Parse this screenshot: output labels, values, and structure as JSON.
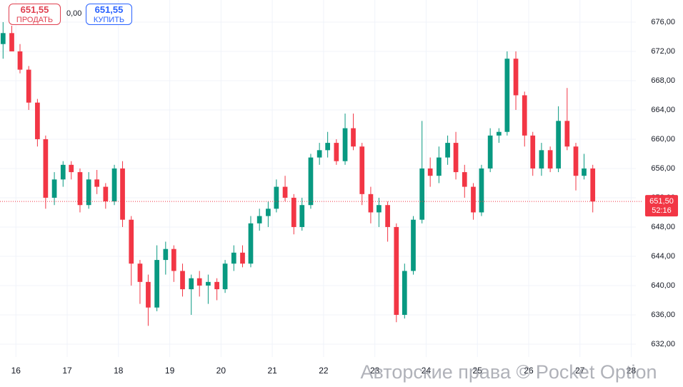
{
  "trade_panel": {
    "sell_price": "651,55",
    "sell_label": "ПРОДАТЬ",
    "spread": "0,00",
    "buy_price": "651,55",
    "buy_label": "КУПИТЬ"
  },
  "watermark": "Авторские права © Pocket Option",
  "chart_data": {
    "type": "candlestick",
    "up_color": "#089981",
    "down_color": "#f23645",
    "grid": true,
    "xlim": [
      15.69,
      28.09
    ],
    "ylim": [
      630.24,
      679.02
    ],
    "xticks": [
      16,
      17,
      18,
      19,
      20,
      21,
      22,
      23,
      24,
      25,
      26,
      27,
      28
    ],
    "yticks": [
      {
        "value": 632,
        "label": "632,00"
      },
      {
        "value": 636,
        "label": "636,00"
      },
      {
        "value": 640,
        "label": "640,00"
      },
      {
        "value": 644,
        "label": "644,00"
      },
      {
        "value": 648,
        "label": "648,00"
      },
      {
        "value": 652,
        "label": "652,00"
      },
      {
        "value": 656,
        "label": "656,00"
      },
      {
        "value": 660,
        "label": "660,00"
      },
      {
        "value": 664,
        "label": "664,00"
      },
      {
        "value": 668,
        "label": "668,00"
      },
      {
        "value": 672,
        "label": "672,00"
      },
      {
        "value": 676,
        "label": "676,00"
      }
    ],
    "current_price": {
      "value": 651.5,
      "label": "651,50"
    },
    "countdown": "52:16",
    "x": [
      15.75,
      15.92,
      16.08,
      16.25,
      16.42,
      16.58,
      16.75,
      16.92,
      17.08,
      17.25,
      17.42,
      17.58,
      17.75,
      17.92,
      18.08,
      18.25,
      18.42,
      18.58,
      18.75,
      18.92,
      19.08,
      19.25,
      19.42,
      19.58,
      19.75,
      19.92,
      20.08,
      20.25,
      20.42,
      20.58,
      20.75,
      20.92,
      21.08,
      21.25,
      21.42,
      21.58,
      21.75,
      21.92,
      22.08,
      22.25,
      22.42,
      22.58,
      22.75,
      22.92,
      23.08,
      23.25,
      23.42,
      23.58,
      23.75,
      23.92,
      24.08,
      24.25,
      24.42,
      24.58,
      24.75,
      24.92,
      25.08,
      25.25,
      25.42,
      25.58,
      25.75,
      25.92,
      26.08,
      26.25,
      26.42,
      26.58,
      26.75,
      26.92,
      27.08,
      27.25
    ],
    "open": [
      673,
      674.5,
      672,
      669.5,
      665,
      660,
      652,
      654.5,
      656.5,
      655.5,
      651,
      654.5,
      653.5,
      651.5,
      656,
      649,
      643,
      640.5,
      637,
      643.5,
      645,
      642,
      639.5,
      641,
      640,
      640.5,
      639.5,
      643,
      644.5,
      643,
      648.5,
      649.5,
      650.5,
      653.5,
      652,
      648,
      651,
      657.5,
      658.5,
      659.5,
      657,
      661.5,
      659,
      652.5,
      650,
      651,
      648,
      636,
      642,
      649,
      656,
      655,
      657.5,
      659.5,
      655.5,
      653.5,
      650,
      656,
      660.5,
      661,
      671,
      666,
      660.5,
      656,
      658.5,
      656,
      662.5,
      659,
      655,
      656
    ],
    "high": [
      676,
      675.5,
      673,
      670,
      665.5,
      660.5,
      655.5,
      657,
      657,
      656,
      655.5,
      655.8,
      654,
      656.5,
      657,
      649.5,
      643.5,
      641.5,
      645.5,
      646,
      645.5,
      643,
      641.5,
      642,
      641.5,
      641,
      643.5,
      645.5,
      645.5,
      649.5,
      650.5,
      651.5,
      654.5,
      655,
      652.5,
      652,
      658,
      659.5,
      661,
      660,
      663.5,
      663.5,
      659.5,
      653.5,
      652,
      651.5,
      648.5,
      643,
      649.5,
      662.5,
      657.5,
      659,
      660.5,
      661,
      656.5,
      654,
      656.5,
      661.5,
      661.5,
      672,
      672,
      666.5,
      661,
      659.5,
      659,
      664.5,
      667,
      659.5,
      658,
      656.5
    ],
    "low": [
      671,
      672,
      669,
      664,
      659,
      650.5,
      651,
      653.5,
      654.5,
      650,
      650.5,
      652.5,
      650.5,
      651,
      648,
      640,
      637.5,
      634.5,
      636.5,
      641.5,
      640.5,
      638.5,
      636,
      638.5,
      637.5,
      638,
      639,
      642,
      642.5,
      642.5,
      647.5,
      648,
      650,
      651.5,
      647,
      647.5,
      650.5,
      656.5,
      657.5,
      656.5,
      656.5,
      658.5,
      651,
      648.5,
      648,
      646,
      635,
      635.5,
      641.5,
      648.5,
      653.5,
      654,
      656.5,
      654.5,
      652,
      649,
      649.5,
      655.5,
      659.5,
      660.5,
      664,
      659,
      655,
      655,
      655.5,
      655.5,
      658.5,
      653,
      654.5,
      650
    ],
    "close": [
      674.5,
      672,
      669.5,
      665,
      660,
      652,
      654.5,
      656.5,
      655.5,
      651,
      654.5,
      653.5,
      651.5,
      656,
      649,
      643,
      640.5,
      637,
      643.5,
      645,
      642,
      639.5,
      641,
      640,
      640.5,
      639.5,
      643,
      644.5,
      643,
      648.5,
      649.5,
      650.5,
      653.5,
      652,
      648,
      651,
      657.5,
      658.5,
      659.5,
      657,
      661.5,
      659,
      652.5,
      650,
      651,
      648,
      636,
      642,
      649,
      656,
      655,
      657.5,
      659.5,
      655.5,
      653.5,
      650,
      656,
      660.5,
      661,
      671,
      666,
      660.5,
      656,
      658.5,
      656,
      662.5,
      659,
      655,
      656,
      651.5
    ]
  }
}
